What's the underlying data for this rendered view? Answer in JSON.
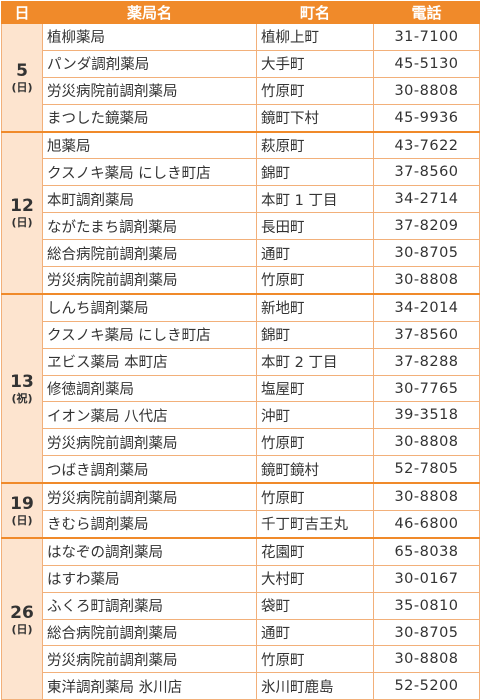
{
  "header": {
    "day": "日",
    "name": "薬局名",
    "town": "町名",
    "tel": "電話"
  },
  "groups": [
    {
      "day": "5",
      "weekday": "(日)",
      "rows": [
        {
          "name": "植柳薬局",
          "town": "植柳上町",
          "tel": "31-7100"
        },
        {
          "name": "パンダ調剤薬局",
          "town": "大手町",
          "tel": "45-5130"
        },
        {
          "name": "労災病院前調剤薬局",
          "town": "竹原町",
          "tel": "30-8808"
        },
        {
          "name": "まつした鏡薬局",
          "town": "鏡町下村",
          "tel": "45-9936"
        }
      ]
    },
    {
      "day": "12",
      "weekday": "(日)",
      "rows": [
        {
          "name": "旭薬局",
          "town": "萩原町",
          "tel": "43-7622"
        },
        {
          "name": "クスノキ薬局 にしき町店",
          "town": "錦町",
          "tel": "37-8560"
        },
        {
          "name": "本町調剤薬局",
          "town": "本町 1 丁目",
          "tel": "34-2714"
        },
        {
          "name": "ながたまち調剤薬局",
          "town": "長田町",
          "tel": "37-8209"
        },
        {
          "name": "総合病院前調剤薬局",
          "town": "通町",
          "tel": "30-8705"
        },
        {
          "name": "労災病院前調剤薬局",
          "town": "竹原町",
          "tel": "30-8808"
        }
      ]
    },
    {
      "day": "13",
      "weekday": "(祝)",
      "rows": [
        {
          "name": "しんち調剤薬局",
          "town": "新地町",
          "tel": "34-2014"
        },
        {
          "name": "クスノキ薬局 にしき町店",
          "town": "錦町",
          "tel": "37-8560"
        },
        {
          "name": "ヱビス薬局 本町店",
          "town": "本町 2 丁目",
          "tel": "37-8288"
        },
        {
          "name": "修徳調剤薬局",
          "town": "塩屋町",
          "tel": "30-7765"
        },
        {
          "name": "イオン薬局 八代店",
          "town": "沖町",
          "tel": "39-3518"
        },
        {
          "name": "労災病院前調剤薬局",
          "town": "竹原町",
          "tel": "30-8808"
        },
        {
          "name": "つばき調剤薬局",
          "town": "鏡町鏡村",
          "tel": "52-7805"
        }
      ]
    },
    {
      "day": "19",
      "weekday": "(日)",
      "rows": [
        {
          "name": "労災病院前調剤薬局",
          "town": "竹原町",
          "tel": "30-8808"
        },
        {
          "name": "きむら調剤薬局",
          "town": "千丁町吉王丸",
          "tel": "46-6800"
        }
      ]
    },
    {
      "day": "26",
      "weekday": "(日)",
      "rows": [
        {
          "name": "はなぞの調剤薬局",
          "town": "花園町",
          "tel": "65-8038"
        },
        {
          "name": "はすわ薬局",
          "town": "大村町",
          "tel": "30-0167"
        },
        {
          "name": "ふくろ町調剤薬局",
          "town": "袋町",
          "tel": "35-0810"
        },
        {
          "name": "総合病院前調剤薬局",
          "town": "通町",
          "tel": "30-8705"
        },
        {
          "name": "労災病院前調剤薬局",
          "town": "竹原町",
          "tel": "30-8808"
        },
        {
          "name": "東洋調剤薬局 氷川店",
          "town": "氷川町鹿島",
          "tel": "52-5200"
        }
      ]
    }
  ]
}
